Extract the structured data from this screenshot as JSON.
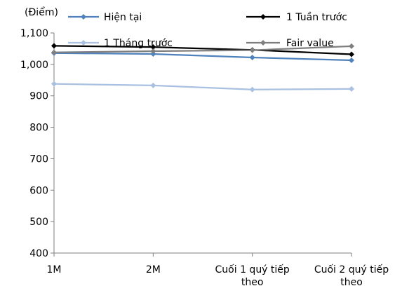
{
  "chart_data": {
    "type": "line",
    "ylabel": "(Điểm)",
    "categories": [
      [
        "1M"
      ],
      [
        "2M"
      ],
      [
        "Cuối 1 quý tiếp",
        "theo"
      ],
      [
        "Cuối 2 quý tiếp",
        "theo"
      ]
    ],
    "ylim": [
      400,
      1100
    ],
    "yticks": [
      400,
      500,
      600,
      700,
      800,
      900,
      1000,
      1100
    ],
    "ytick_labels": [
      "400",
      "500",
      "600",
      "700",
      "800",
      "900",
      "1,000",
      "1,100"
    ],
    "grid": false,
    "legend_position": "top",
    "series": [
      {
        "name": "Hiện tại",
        "color": "#4f81bd",
        "values": [
          1036,
          1033,
          1022,
          1013
        ]
      },
      {
        "name": "1 Tuần trước",
        "color": "#000000",
        "values": [
          1059,
          1055,
          1046,
          1032
        ]
      },
      {
        "name": "1 Tháng trước",
        "color": "#a9c0e0",
        "values": [
          938,
          933,
          920,
          922
        ]
      },
      {
        "name": "Fair value",
        "color": "#7f7f7f",
        "values": [
          1038,
          1042,
          1045,
          1058
        ]
      }
    ]
  }
}
